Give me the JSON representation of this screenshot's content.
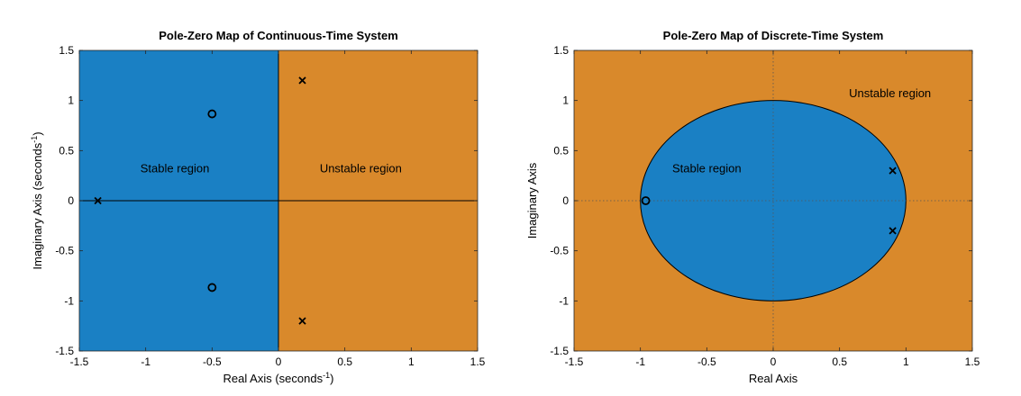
{
  "chart_data": [
    {
      "type": "scatter",
      "subtype": "pole-zero-map",
      "title": "Pole-Zero Map of Continuous-Time System",
      "xlabel": "Real Axis (seconds",
      "ylabel": "Imaginary Axis (seconds",
      "unit_exponent": "-1",
      "xlim": [
        -1.5,
        1.5
      ],
      "ylim": [
        -1.5,
        1.5
      ],
      "xticks": [
        -1.5,
        -1,
        -0.5,
        0,
        0.5,
        1,
        1.5
      ],
      "yticks": [
        -1.5,
        -1,
        -0.5,
        0,
        0.5,
        1,
        1.5
      ],
      "grid": false,
      "regions": [
        {
          "label": "Stable region",
          "color": "#1a80c4",
          "shape": "half-plane-left"
        },
        {
          "label": "Unstable region",
          "color": "#d9892b",
          "shape": "half-plane-right"
        }
      ],
      "region_labels": [
        {
          "text": "Stable region",
          "x": -0.78,
          "y": 0.32
        },
        {
          "text": "Unstable region",
          "x": 0.62,
          "y": 0.32
        }
      ],
      "series": [
        {
          "marker": "x",
          "points": [
            [
              -1.36,
              0
            ],
            [
              0.18,
              1.2
            ],
            [
              0.18,
              -1.2
            ]
          ]
        },
        {
          "marker": "o",
          "points": [
            [
              -0.5,
              0.866
            ],
            [
              -0.5,
              -0.866
            ]
          ]
        }
      ]
    },
    {
      "type": "scatter",
      "subtype": "pole-zero-map",
      "title": "Pole-Zero Map of Discrete-Time System",
      "xlabel": "Real Axis",
      "ylabel": "Imaginary Axis",
      "xlim": [
        -1.5,
        1.5
      ],
      "ylim": [
        -1.5,
        1.5
      ],
      "xticks": [
        -1.5,
        -1,
        -0.5,
        0,
        0.5,
        1,
        1.5
      ],
      "yticks": [
        -1.5,
        -1,
        -0.5,
        0,
        0.5,
        1,
        1.5
      ],
      "grid": false,
      "regions": [
        {
          "label": "Stable region",
          "color": "#1a80c4",
          "shape": "unit-circle"
        },
        {
          "label": "Unstable region",
          "color": "#d9892b",
          "shape": "outside-unit-circle"
        }
      ],
      "region_labels": [
        {
          "text": "Stable region",
          "x": -0.5,
          "y": 0.32
        },
        {
          "text": "Unstable region",
          "x": 0.88,
          "y": 1.07
        }
      ],
      "series": [
        {
          "marker": "x",
          "points": [
            [
              0.9,
              0.3
            ],
            [
              0.9,
              -0.3
            ]
          ]
        },
        {
          "marker": "o",
          "points": [
            [
              -0.96,
              0
            ]
          ]
        }
      ]
    }
  ],
  "colors": {
    "stable": "#1a80c4",
    "unstable": "#d9892b",
    "axis": "#000000"
  }
}
